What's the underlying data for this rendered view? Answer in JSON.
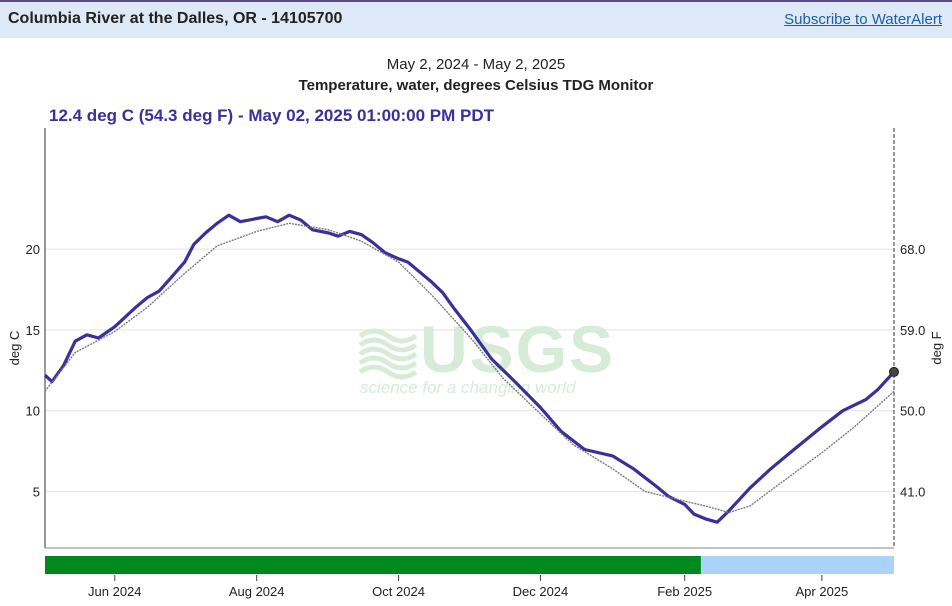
{
  "header": {
    "site_title": "Columbia River at the Dalles, OR - 14105700",
    "subscribe_label": "Subscribe to WaterAlert"
  },
  "chart_header": {
    "date_range": "May 2, 2024 - May 2, 2025",
    "parameter_title": "Temperature, water, degrees Celsius TDG Monitor",
    "current_reading": "12.4 deg C (54.3 deg F) - May 02, 2025 01:00:00 PM PDT"
  },
  "watermark": {
    "logo_text": "USGS",
    "tagline": "science for a changing world",
    "color": "#d6ebd8"
  },
  "colors": {
    "current_series": "#38319a",
    "comparison_series": "#7a7a7a",
    "approved_bar": "#008a1e",
    "provisional_bar": "#a9d3f8",
    "grid": "#e3e3e3"
  },
  "chart_data": {
    "type": "line",
    "ylabel_left": "deg C",
    "ylabel_right": "deg F",
    "left_ticks": [
      {
        "value": 5,
        "label": "5"
      },
      {
        "value": 10,
        "label": "10"
      },
      {
        "value": 15,
        "label": "15"
      },
      {
        "value": 20,
        "label": "20"
      }
    ],
    "right_ticks": [
      {
        "value": 5,
        "label": "41.0"
      },
      {
        "value": 10,
        "label": "50.0"
      },
      {
        "value": 15,
        "label": "59.0"
      },
      {
        "value": 20,
        "label": "68.0"
      }
    ],
    "ylim": [
      1.5,
      27.5
    ],
    "xlim": [
      "2024-05-02",
      "2025-05-02"
    ],
    "x_ticks": [
      {
        "date": "2024-06-01",
        "label": "Jun 2024"
      },
      {
        "date": "2024-08-01",
        "label": "Aug 2024"
      },
      {
        "date": "2024-10-01",
        "label": "Oct 2024"
      },
      {
        "date": "2024-12-01",
        "label": "Dec 2024"
      },
      {
        "date": "2025-02-01",
        "label": "Feb 2025"
      },
      {
        "date": "2025-04-01",
        "label": "Apr 2025"
      }
    ],
    "series": [
      {
        "role": "current",
        "x": [
          "2024-05-02",
          "2024-05-05",
          "2024-05-10",
          "2024-05-15",
          "2024-05-20",
          "2024-05-25",
          "2024-06-01",
          "2024-06-10",
          "2024-06-15",
          "2024-06-20",
          "2024-06-25",
          "2024-07-01",
          "2024-07-05",
          "2024-07-10",
          "2024-07-15",
          "2024-07-20",
          "2024-07-25",
          "2024-08-01",
          "2024-08-05",
          "2024-08-10",
          "2024-08-15",
          "2024-08-20",
          "2024-08-25",
          "2024-09-01",
          "2024-09-05",
          "2024-09-10",
          "2024-09-15",
          "2024-09-20",
          "2024-09-25",
          "2024-10-01",
          "2024-10-05",
          "2024-10-10",
          "2024-10-15",
          "2024-10-20",
          "2024-10-25",
          "2024-11-01",
          "2024-11-10",
          "2024-11-20",
          "2024-12-01",
          "2024-12-10",
          "2024-12-20",
          "2025-01-01",
          "2025-01-10",
          "2025-01-20",
          "2025-01-25",
          "2025-02-01",
          "2025-02-05",
          "2025-02-10",
          "2025-02-15",
          "2025-02-20",
          "2025-03-01",
          "2025-03-10",
          "2025-03-20",
          "2025-04-01",
          "2025-04-10",
          "2025-04-20",
          "2025-04-25",
          "2025-05-02"
        ],
        "y": [
          12.2,
          11.8,
          12.8,
          14.3,
          14.7,
          14.5,
          15.2,
          16.4,
          17.0,
          17.4,
          18.2,
          19.2,
          20.3,
          21.0,
          21.6,
          22.1,
          21.7,
          21.9,
          22.0,
          21.7,
          22.1,
          21.8,
          21.2,
          21.0,
          20.8,
          21.1,
          20.9,
          20.4,
          19.8,
          19.4,
          19.2,
          18.6,
          18.0,
          17.3,
          16.3,
          15.0,
          13.2,
          11.8,
          10.2,
          8.7,
          7.6,
          7.2,
          6.4,
          5.3,
          4.7,
          4.2,
          3.6,
          3.3,
          3.1,
          3.8,
          5.2,
          6.4,
          7.6,
          9.0,
          10.0,
          10.7,
          11.3,
          12.4
        ]
      },
      {
        "role": "comparison",
        "x": [
          "2024-05-02",
          "2024-05-15",
          "2024-06-01",
          "2024-06-15",
          "2024-07-01",
          "2024-07-15",
          "2024-08-01",
          "2024-08-15",
          "2024-09-01",
          "2024-09-15",
          "2024-10-01",
          "2024-10-15",
          "2024-11-01",
          "2024-11-15",
          "2024-12-01",
          "2024-12-15",
          "2025-01-01",
          "2025-01-15",
          "2025-02-01",
          "2025-02-10",
          "2025-02-20",
          "2025-03-01",
          "2025-03-15",
          "2025-04-01",
          "2025-04-15",
          "2025-05-02"
        ],
        "y": [
          11.2,
          13.6,
          14.9,
          16.4,
          18.5,
          20.2,
          21.1,
          21.6,
          21.2,
          20.5,
          19.2,
          17.2,
          14.5,
          12.0,
          9.8,
          7.9,
          6.4,
          5.0,
          4.4,
          4.1,
          3.7,
          4.1,
          5.6,
          7.4,
          9.0,
          11.2
        ]
      }
    ],
    "marker": {
      "x": "2025-05-02",
      "y": 12.4
    },
    "status_bar": [
      {
        "from": "2024-05-02",
        "to": "2025-02-08",
        "status": "approved"
      },
      {
        "from": "2025-02-08",
        "to": "2025-05-02",
        "status": "provisional"
      }
    ]
  }
}
